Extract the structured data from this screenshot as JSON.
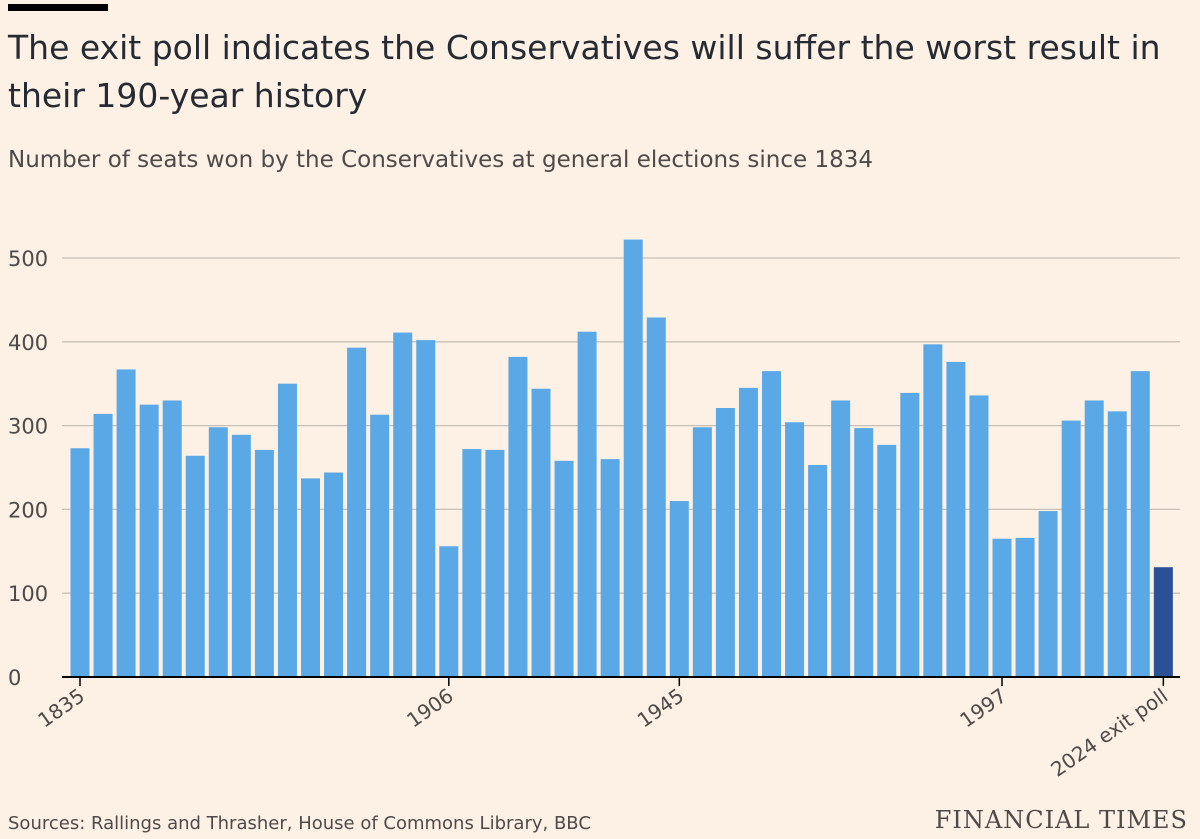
{
  "title": "The exit poll indicates the Conservatives will suffer the worst result in their 190-year history",
  "subtitle": "Number of seats won by the Conservatives at general elections since 1834",
  "source": "Sources: Rallings and Thrasher, House of Commons Library, BBC",
  "brand": "FINANCIAL TIMES",
  "colors": {
    "background": "#fdf1e6",
    "bar": "#5aa9e6",
    "highlight": "#2a5196",
    "gridline": "#c9c0b7",
    "text": "#4e4a47"
  },
  "chart_data": {
    "type": "bar",
    "categories": [
      "1835",
      "",
      "",
      "",
      "",
      "",
      "",
      "",
      "",
      "",
      "",
      "",
      "",
      "",
      "",
      "",
      "1906",
      "",
      "",
      "",
      "",
      "",
      "",
      "",
      "",
      "",
      "1945",
      "",
      "",
      "",
      "",
      "",
      "",
      "",
      "",
      "",
      "",
      "",
      "",
      "",
      "1997",
      "",
      "",
      "",
      "",
      "",
      "",
      "2024 exit poll"
    ],
    "values": [
      273,
      314,
      367,
      325,
      330,
      264,
      298,
      289,
      271,
      350,
      237,
      244,
      393,
      313,
      411,
      402,
      156,
      272,
      271,
      382,
      344,
      258,
      412,
      260,
      522,
      429,
      210,
      298,
      321,
      345,
      365,
      304,
      253,
      330,
      297,
      277,
      339,
      397,
      376,
      336,
      165,
      166,
      198,
      306,
      330,
      317,
      365,
      131
    ],
    "highlight_index": 47,
    "ylim": [
      0,
      540
    ],
    "yticks": [
      0,
      100,
      200,
      300,
      400,
      500
    ],
    "ytick_labels": [
      "0",
      "100",
      "200",
      "300",
      "400",
      "500"
    ],
    "xlabel": "",
    "ylabel": "",
    "grid": true
  }
}
